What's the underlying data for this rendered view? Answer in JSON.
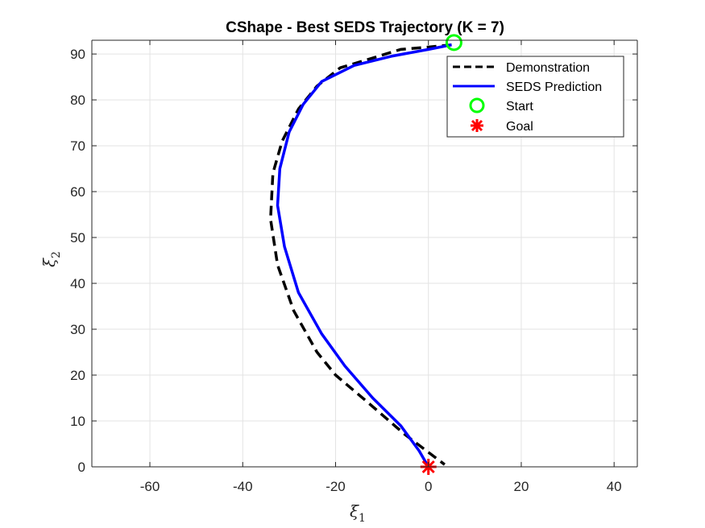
{
  "chart_data": {
    "type": "line",
    "title": "CShape - Best SEDS Trajectory (K = 7)",
    "xlabel": {
      "symbol": "ξ",
      "subscript": "1"
    },
    "ylabel": {
      "symbol": "ξ",
      "subscript": "2"
    },
    "xlim": [
      -72.5,
      45
    ],
    "ylim": [
      0,
      93
    ],
    "xticks": [
      -60,
      -40,
      -20,
      0,
      20,
      40
    ],
    "yticks": [
      0,
      10,
      20,
      30,
      40,
      50,
      60,
      70,
      80,
      90
    ],
    "xtick_labels": [
      "-60",
      "-40",
      "-20",
      "0",
      "20",
      "40"
    ],
    "ytick_labels": [
      "0",
      "10",
      "20",
      "30",
      "40",
      "50",
      "60",
      "70",
      "80",
      "90"
    ],
    "grid": true,
    "legend_position": "top-right",
    "series": [
      {
        "name": "Demonstration",
        "color": "#000000",
        "style": "dashed",
        "x": [
          5,
          0,
          -6,
          -14,
          -19,
          -24,
          -28,
          -31.5,
          -33.5,
          -34,
          -32.5,
          -29,
          -24,
          -20,
          -13,
          -5,
          3.5
        ],
        "y": [
          92,
          91.5,
          91,
          88.5,
          87,
          83,
          78,
          71,
          64,
          54,
          44,
          34,
          25,
          20,
          14,
          7,
          0.5
        ]
      },
      {
        "name": "SEDS Prediction",
        "color": "#0000ff",
        "style": "solid",
        "x": [
          5,
          0,
          -8,
          -16,
          -23,
          -27,
          -30,
          -32,
          -32.5,
          -31,
          -28,
          -23,
          -18,
          -12,
          -6,
          -2,
          0
        ],
        "y": [
          92,
          91,
          89.5,
          87.5,
          84,
          79,
          73,
          65,
          57,
          48,
          38,
          29,
          22,
          15,
          9,
          3.5,
          0
        ]
      }
    ],
    "markers": [
      {
        "name": "Start",
        "x": 5.5,
        "y": 92.5,
        "shape": "circle",
        "color": "#00ff00"
      },
      {
        "name": "Goal",
        "x": 0,
        "y": 0,
        "shape": "asterisk",
        "color": "#ff0000"
      }
    ]
  }
}
